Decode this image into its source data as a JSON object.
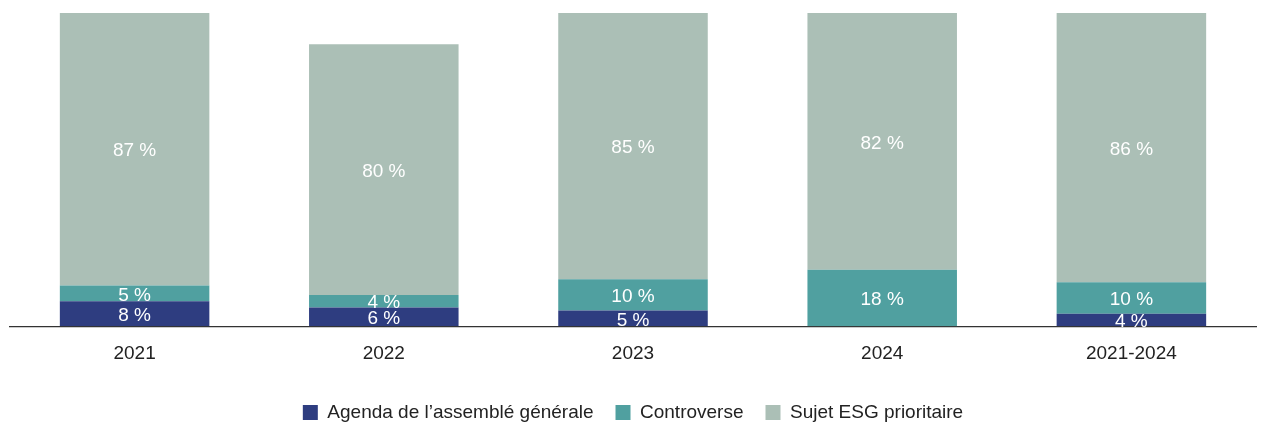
{
  "chart_data": {
    "type": "bar",
    "stacked": true,
    "categories": [
      "2021",
      "2022",
      "2023",
      "2024",
      "2021-2024"
    ],
    "series": [
      {
        "name": "Agenda de l’assemblé générale",
        "color": "#2e3d80",
        "values": [
          8,
          6,
          5,
          null,
          4
        ],
        "value_labels": [
          "8 %",
          "6 %",
          "5 %",
          null,
          "4 %"
        ]
      },
      {
        "name": "Controverse",
        "color": "#50a0a0",
        "values": [
          5,
          4,
          10,
          18,
          10
        ],
        "value_labels": [
          "5 %",
          "4 %",
          "10 %",
          "18 %",
          "10 %"
        ]
      },
      {
        "name": "Sujet ESG prioritaire",
        "color": "#abbfb6",
        "values": [
          87,
          80,
          85,
          82,
          86
        ],
        "value_labels": [
          "87 %",
          "80 %",
          "85 %",
          "82 %",
          "86 %"
        ]
      }
    ],
    "ylim": [
      0,
      100
    ],
    "tick_labels": "x",
    "grid": false,
    "legend": "bottom"
  }
}
